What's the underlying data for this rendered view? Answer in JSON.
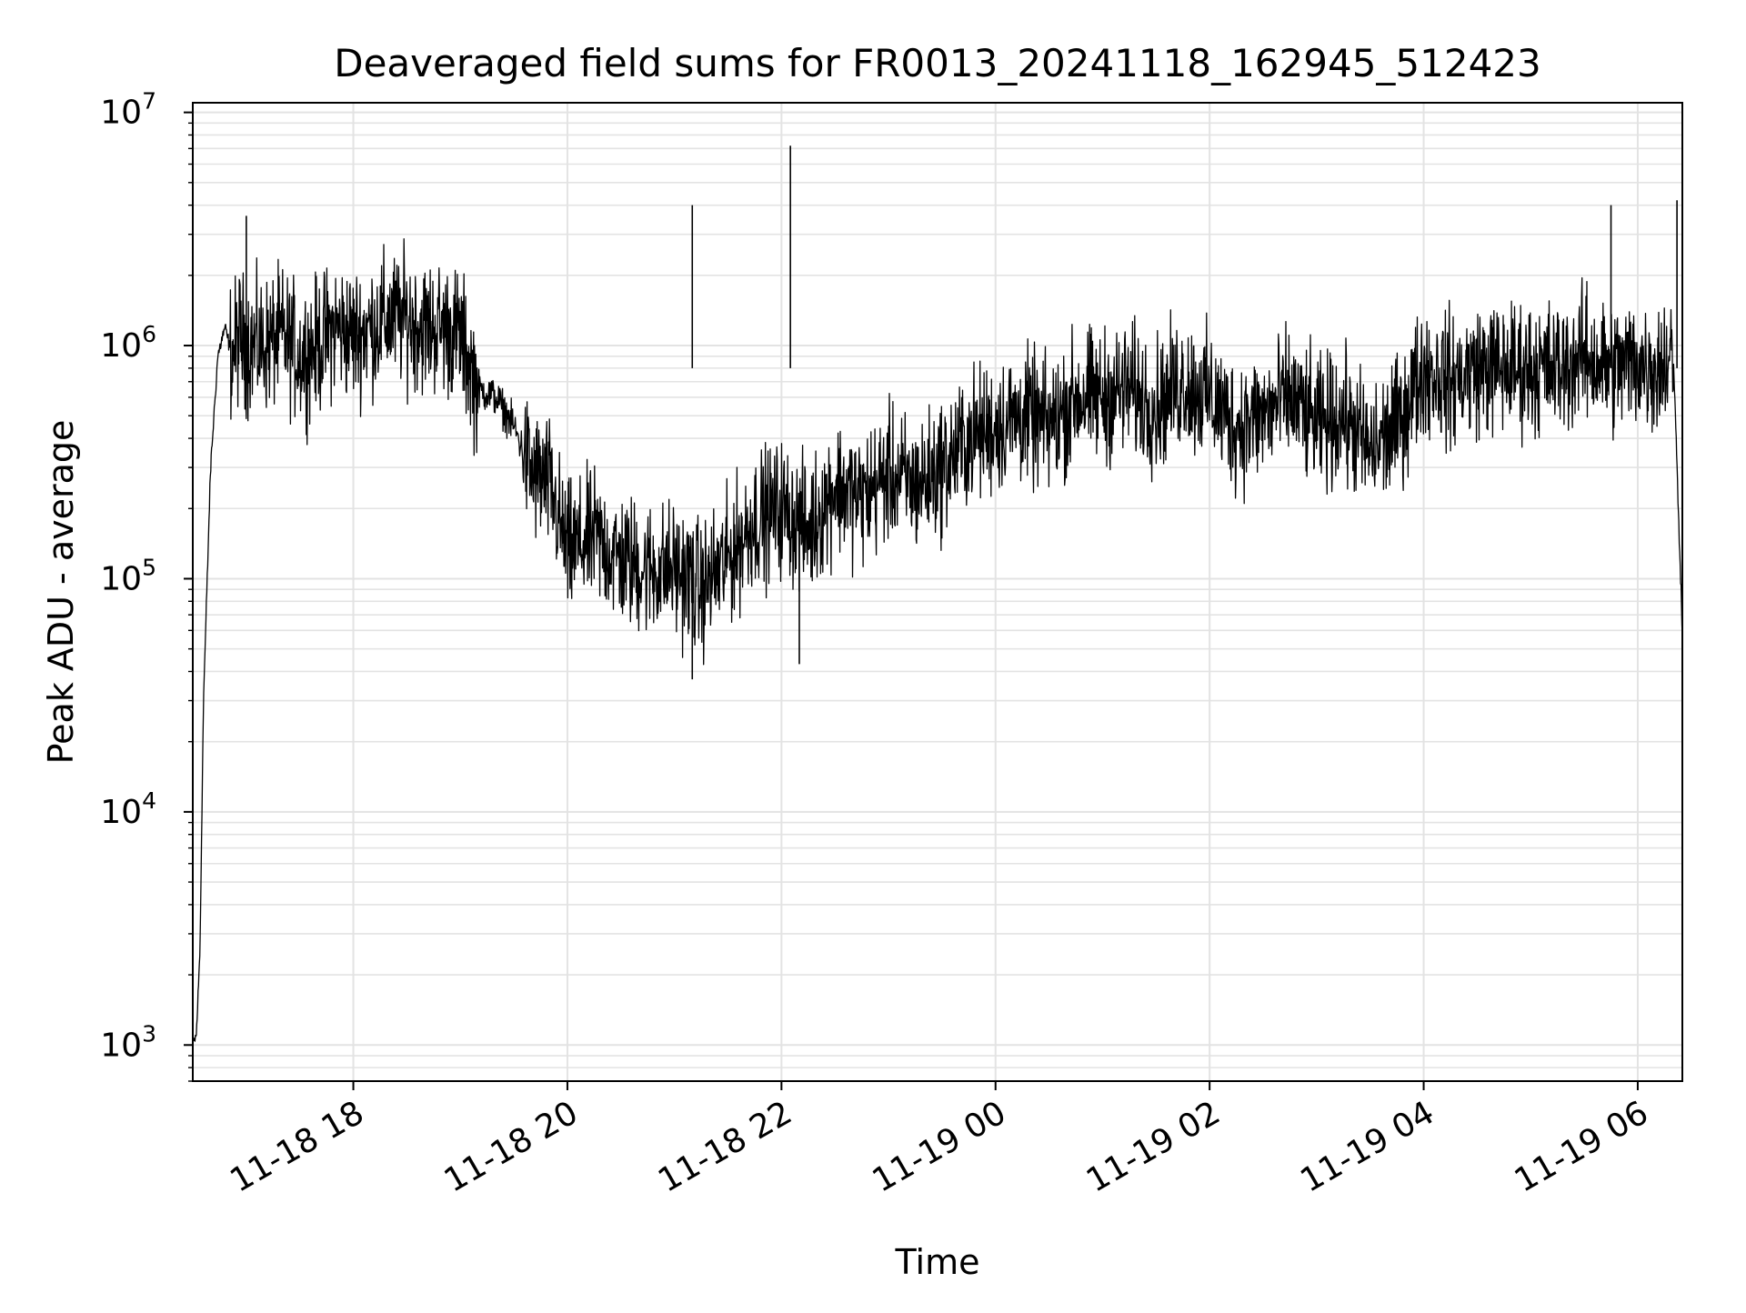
{
  "chart_data": {
    "type": "line",
    "title": "Deaveraged field sums for FR0013_20241118_162945_512423",
    "xlabel": "Time",
    "ylabel": "Peak ADU - average",
    "yscale": "log",
    "ylim": [
      700,
      11000000
    ],
    "xlim": [
      "2024-11-18 16:30",
      "2024-11-19 06:25"
    ],
    "grid": true,
    "x_ticks": [
      "11-18 18",
      "11-18 20",
      "11-18 22",
      "11-19 00",
      "11-19 02",
      "11-19 04",
      "11-19 06"
    ],
    "x_tick_values": [
      "2024-11-18 18:00",
      "2024-11-18 20:00",
      "2024-11-18 22:00",
      "2024-11-19 00:00",
      "2024-11-19 02:00",
      "2024-11-19 04:00",
      "2024-11-19 06:00"
    ],
    "y_ticks": [
      {
        "base": "10",
        "exp": "3",
        "value": 1000
      },
      {
        "base": "10",
        "exp": "4",
        "value": 10000
      },
      {
        "base": "10",
        "exp": "5",
        "value": 100000
      },
      {
        "base": "10",
        "exp": "6",
        "value": 1000000
      },
      {
        "base": "10",
        "exp": "7",
        "value": 10000000
      }
    ],
    "series": [
      {
        "color": "#000000",
        "x": [
          "2024-11-18 16:30",
          "2024-11-18 16:32",
          "2024-11-18 16:34",
          "2024-11-18 16:36",
          "2024-11-18 16:40",
          "2024-11-18 16:44",
          "2024-11-18 16:48",
          "2024-11-18 16:52",
          "2024-11-18 16:56",
          "2024-11-18 17:00",
          "2024-11-18 17:10",
          "2024-11-18 17:20",
          "2024-11-18 17:30",
          "2024-11-18 17:40",
          "2024-11-18 17:50",
          "2024-11-18 18:00",
          "2024-11-18 18:10",
          "2024-11-18 18:20",
          "2024-11-18 18:30",
          "2024-11-18 18:40",
          "2024-11-18 18:50",
          "2024-11-18 19:00",
          "2024-11-18 19:10",
          "2024-11-18 19:20",
          "2024-11-18 19:30",
          "2024-11-18 19:40",
          "2024-11-18 19:50",
          "2024-11-18 20:00",
          "2024-11-18 20:15",
          "2024-11-18 20:30",
          "2024-11-18 20:45",
          "2024-11-18 21:00",
          "2024-11-18 21:15",
          "2024-11-18 21:30",
          "2024-11-18 21:45",
          "2024-11-18 22:00",
          "2024-11-18 22:15",
          "2024-11-18 22:30",
          "2024-11-18 22:45",
          "2024-11-18 23:00",
          "2024-11-18 23:15",
          "2024-11-18 23:30",
          "2024-11-18 23:45",
          "2024-11-19 00:00",
          "2024-11-19 00:15",
          "2024-11-19 00:30",
          "2024-11-19 00:45",
          "2024-11-19 01:00",
          "2024-11-19 01:15",
          "2024-11-19 01:30",
          "2024-11-19 01:45",
          "2024-11-19 02:00",
          "2024-11-19 02:15",
          "2024-11-19 02:30",
          "2024-11-19 02:45",
          "2024-11-19 03:00",
          "2024-11-19 03:15",
          "2024-11-19 03:30",
          "2024-11-19 03:45",
          "2024-11-19 04:00",
          "2024-11-19 04:15",
          "2024-11-19 04:30",
          "2024-11-19 04:45",
          "2024-11-19 05:00",
          "2024-11-19 05:15",
          "2024-11-19 05:30",
          "2024-11-19 05:45",
          "2024-11-19 06:00",
          "2024-11-19 06:10",
          "2024-11-19 06:20",
          "2024-11-19 06:25"
        ],
        "y": [
          1000,
          1100,
          2500,
          30000,
          300000,
          900000,
          1200000,
          900000,
          1100000,
          1000000,
          1000000,
          1100000,
          900000,
          1000000,
          1200000,
          1100000,
          1200000,
          1300000,
          1300000,
          1200000,
          1200000,
          1100000,
          650000,
          600000,
          450000,
          280000,
          250000,
          130000,
          150000,
          120000,
          110000,
          110000,
          90000,
          120000,
          180000,
          200000,
          160000,
          250000,
          220000,
          280000,
          250000,
          300000,
          400000,
          450000,
          500000,
          450000,
          600000,
          600000,
          650000,
          550000,
          700000,
          600000,
          450000,
          500000,
          600000,
          450000,
          500000,
          350000,
          450000,
          800000,
          700000,
          800000,
          800000,
          800000,
          800000,
          900000,
          800000,
          850000,
          800000,
          900000,
          60000
        ]
      }
    ],
    "notable_spikes": [
      {
        "x": "2024-11-18 17:00",
        "y": 3600000
      },
      {
        "x": "2024-11-18 21:10",
        "y": 4000000
      },
      {
        "x": "2024-11-18 22:05",
        "y": 7200000
      },
      {
        "x": "2024-11-19 05:45",
        "y": 4000000
      },
      {
        "x": "2024-11-19 06:22",
        "y": 4200000
      }
    ],
    "notable_dips": [
      {
        "x": "2024-11-18 21:10",
        "y": 37000
      },
      {
        "x": "2024-11-18 22:10",
        "y": 43000
      }
    ]
  }
}
